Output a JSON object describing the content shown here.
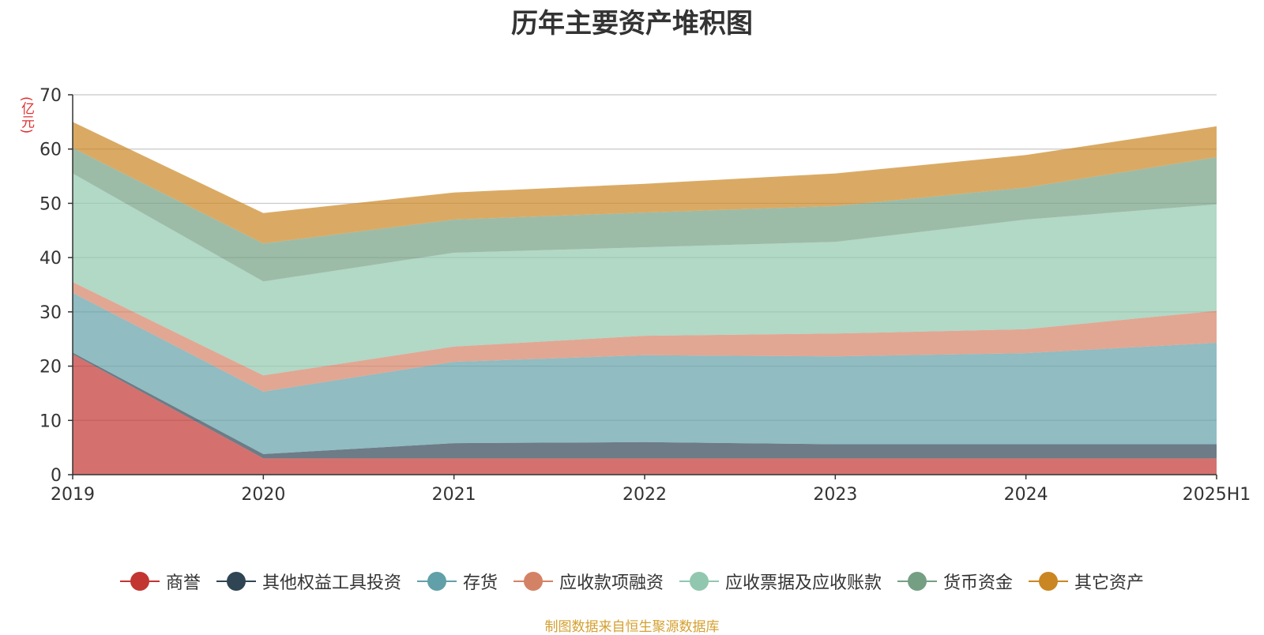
{
  "chart_data": {
    "type": "area",
    "stacked": true,
    "title": "历年主要资产堆积图",
    "y_unit": "(亿元)",
    "x": [
      "2019",
      "2020",
      "2021",
      "2022",
      "2023",
      "2024",
      "2025H1"
    ],
    "ylim": [
      0,
      70
    ],
    "yticks": [
      0,
      10,
      20,
      30,
      40,
      50,
      60,
      70
    ],
    "grid": true,
    "legend_position": "bottom",
    "series": [
      {
        "name": "商誉",
        "color": "#c23531",
        "values": [
          22.2,
          3.0,
          3.0,
          3.0,
          3.0,
          3.0,
          3.0
        ]
      },
      {
        "name": "其他权益工具投资",
        "color": "#2f4554",
        "values": [
          0.3,
          0.8,
          2.8,
          3.0,
          2.6,
          2.6,
          2.6
        ]
      },
      {
        "name": "存货",
        "color": "#61a0a8",
        "values": [
          11.0,
          11.5,
          15.0,
          16.0,
          16.2,
          16.8,
          18.7
        ]
      },
      {
        "name": "应收款项融资",
        "color": "#d48265",
        "values": [
          2.0,
          3.0,
          2.8,
          3.6,
          4.2,
          4.4,
          5.9
        ]
      },
      {
        "name": "应收票据及应收账款",
        "color": "#91c7ae",
        "values": [
          20.0,
          17.3,
          17.3,
          16.3,
          16.9,
          20.2,
          19.6
        ]
      },
      {
        "name": "货币资金",
        "color": "#749f83",
        "values": [
          4.7,
          7.0,
          6.1,
          6.4,
          6.6,
          5.9,
          8.7
        ]
      },
      {
        "name": "其它资产",
        "color": "#ca8622",
        "values": [
          4.8,
          5.6,
          5.0,
          5.3,
          6.0,
          6.0,
          5.7
        ]
      }
    ]
  },
  "source_note": "制图数据来自恒生聚源数据库"
}
